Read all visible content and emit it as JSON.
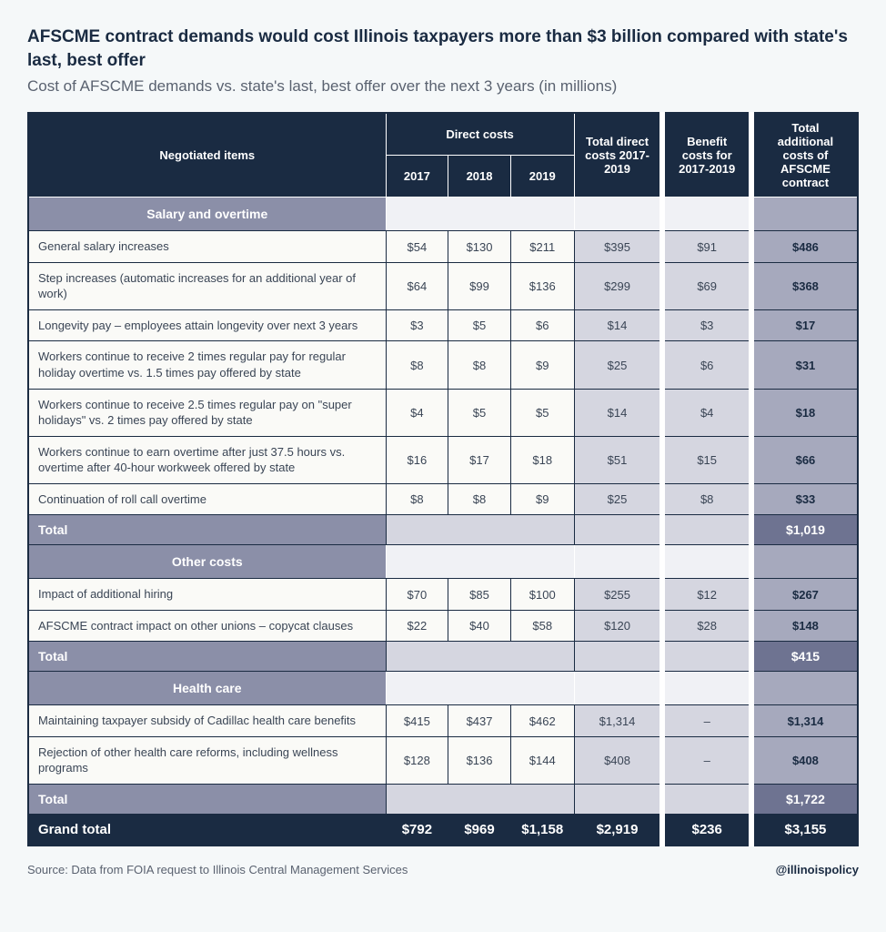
{
  "title": "AFSCME contract demands would cost Illinois taxpayers more than $3 billion compared with state's last, best offer",
  "subtitle": "Cost of AFSCME demands vs. state's last, best offer over the next 3 years (in millions)",
  "headers": {
    "negotiated": "Negotiated items",
    "direct_costs": "Direct costs",
    "y2017": "2017",
    "y2018": "2018",
    "y2019": "2019",
    "total_direct": "Total direct costs 2017-2019",
    "benefit": "Benefit costs for 2017-2019",
    "total_add": "Total additional costs of AFSCME contract"
  },
  "sections": [
    {
      "name": "Salary and overtime",
      "rows": [
        {
          "label": "General salary increases",
          "y2017": "$54",
          "y2018": "$130",
          "y2019": "$211",
          "tdc": "$395",
          "bc": "$91",
          "tac": "$486"
        },
        {
          "label": "Step increases (automatic increases for an additional year of work)",
          "y2017": "$64",
          "y2018": "$99",
          "y2019": "$136",
          "tdc": "$299",
          "bc": "$69",
          "tac": "$368"
        },
        {
          "label": "Longevity pay – employees attain longevity over next 3 years",
          "y2017": "$3",
          "y2018": "$5",
          "y2019": "$6",
          "tdc": "$14",
          "bc": "$3",
          "tac": "$17"
        },
        {
          "label": "Workers continue to receive 2 times regular pay for regular holiday overtime vs. 1.5 times pay offered by state",
          "y2017": "$8",
          "y2018": "$8",
          "y2019": "$9",
          "tdc": "$25",
          "bc": "$6",
          "tac": "$31"
        },
        {
          "label": "Workers continue to receive 2.5 times regular pay on \"super holidays\" vs. 2 times pay offered by state",
          "y2017": "$4",
          "y2018": "$5",
          "y2019": "$5",
          "tdc": "$14",
          "bc": "$4",
          "tac": "$18"
        },
        {
          "label": "Workers continue to earn overtime after just 37.5 hours vs. overtime after 40-hour workweek offered by state",
          "y2017": "$16",
          "y2018": "$17",
          "y2019": "$18",
          "tdc": "$51",
          "bc": "$15",
          "tac": "$66"
        },
        {
          "label": "Continuation of roll call overtime",
          "y2017": "$8",
          "y2018": "$8",
          "y2019": "$9",
          "tdc": "$25",
          "bc": "$8",
          "tac": "$33"
        }
      ],
      "subtotal_label": "Total",
      "subtotal": "$1,019"
    },
    {
      "name": "Other costs",
      "rows": [
        {
          "label": "Impact of additional hiring",
          "y2017": "$70",
          "y2018": "$85",
          "y2019": "$100",
          "tdc": "$255",
          "bc": "$12",
          "tac": "$267"
        },
        {
          "label": "AFSCME contract impact on other unions – copycat clauses",
          "y2017": "$22",
          "y2018": "$40",
          "y2019": "$58",
          "tdc": "$120",
          "bc": "$28",
          "tac": "$148"
        }
      ],
      "subtotal_label": "Total",
      "subtotal": "$415"
    },
    {
      "name": "Health care",
      "rows": [
        {
          "label": "Maintaining taxpayer subsidy of Cadillac health care benefits",
          "y2017": "$415",
          "y2018": "$437",
          "y2019": "$462",
          "tdc": "$1,314",
          "bc": "–",
          "tac": "$1,314"
        },
        {
          "label": "Rejection of other health care reforms, including wellness programs",
          "y2017": "$128",
          "y2018": "$136",
          "y2019": "$144",
          "tdc": "$408",
          "bc": "–",
          "tac": "$408"
        }
      ],
      "subtotal_label": "Total",
      "subtotal": "$1,722"
    }
  ],
  "grand": {
    "label": "Grand total",
    "y2017": "$792",
    "y2018": "$969",
    "y2019": "$1,158",
    "tdc": "$2,919",
    "bc": "$236",
    "tac": "$3,155"
  },
  "source": "Source: Data from FOIA request to Illinois Central Management Services",
  "handle": "@illinoispolicy",
  "colors": {
    "header_bg": "#1a2b42",
    "section_bg": "#8b8fa8",
    "tac_bg": "#a6a9bd",
    "shade_bg": "#d5d6e0",
    "row_bg": "#fafaf7",
    "page_bg": "#f5f8f9"
  }
}
